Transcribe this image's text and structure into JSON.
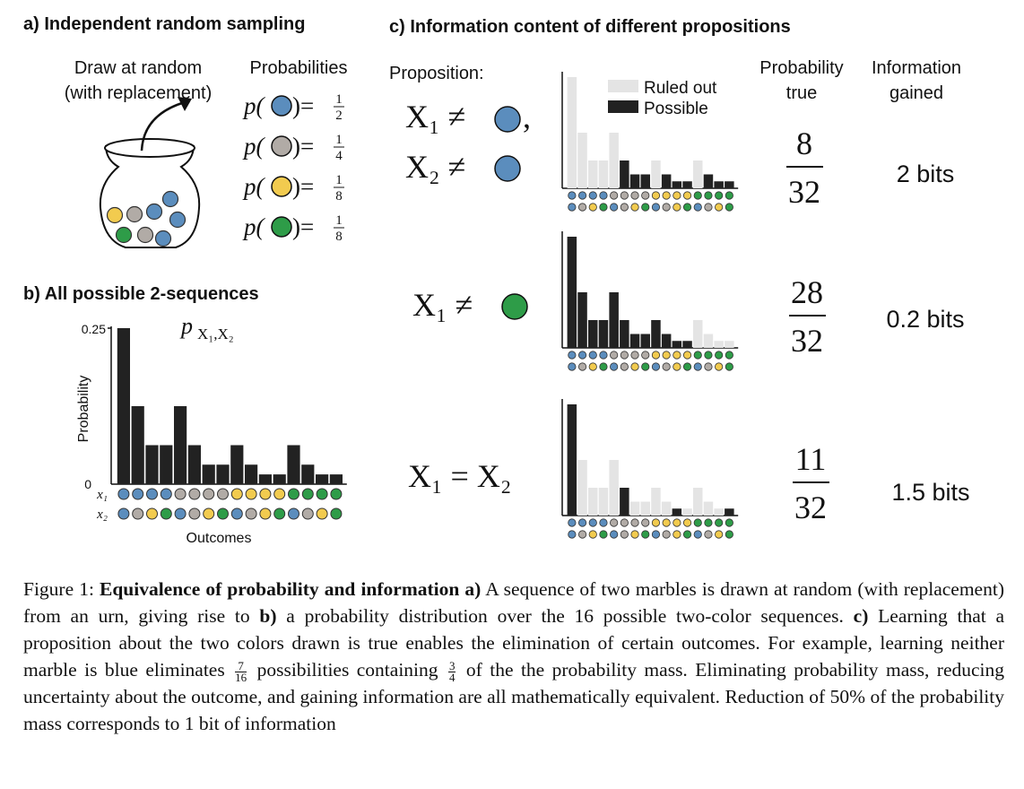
{
  "colors": {
    "blue": "#5b8dbd",
    "gray": "#b1aba6",
    "yellow": "#f2cb4f",
    "green": "#2e9c48",
    "possible": "#222222",
    "ruled_out": "#e4e4e4"
  },
  "panel_a": {
    "title": "a) Independent random sampling",
    "draw_label_1": "Draw at random",
    "draw_label_2": "(with replacement)",
    "prob_header": "Probabilities",
    "probabilities": [
      {
        "color": "blue",
        "num": "1",
        "den": "2"
      },
      {
        "color": "gray",
        "num": "1",
        "den": "4"
      },
      {
        "color": "yellow",
        "num": "1",
        "den": "8"
      },
      {
        "color": "green",
        "num": "1",
        "den": "8"
      }
    ]
  },
  "panel_b": {
    "title": "b) All possible 2-sequences",
    "p_label": "p",
    "p_sub": "X₁,X₂",
    "ylabel": "Probability",
    "xlabel": "Outcomes",
    "ytick_top": "0.25",
    "ytick_zero": "0",
    "x1_label": "x₁",
    "x2_label": "x₂"
  },
  "panel_c": {
    "title": "c) Information content of different propositions",
    "proposition_header": "Proposition:",
    "prob_true_header_1": "Probability",
    "prob_true_header_2": "true",
    "info_header_1": "Information",
    "info_header_2": "gained",
    "legend_ruled_out": "Ruled out",
    "legend_possible": "Possible",
    "rows": [
      {
        "prop_line_1": "X₁ ≠",
        "prop_line_1_suffix": ",",
        "prop_line_2": "X₂ ≠",
        "prop_color": "blue",
        "prob_num": "8",
        "prob_den": "32",
        "info": "2 bits",
        "possible": [
          false,
          false,
          false,
          false,
          false,
          true,
          true,
          true,
          false,
          true,
          true,
          true,
          false,
          true,
          true,
          true
        ]
      },
      {
        "prop_line_1": "X₁ ≠",
        "prop_color": "green",
        "prob_num": "28",
        "prob_den": "32",
        "info": "0.2 bits",
        "possible": [
          true,
          true,
          true,
          true,
          true,
          true,
          true,
          true,
          true,
          true,
          true,
          true,
          false,
          false,
          false,
          false
        ]
      },
      {
        "prop_line_1": "X₁ = X₂",
        "prop_color": "",
        "prob_num": "11",
        "prob_den": "32",
        "info": "1.5 bits",
        "possible": [
          true,
          false,
          false,
          false,
          false,
          true,
          false,
          false,
          false,
          false,
          true,
          false,
          false,
          false,
          false,
          true
        ]
      }
    ]
  },
  "chart_data": {
    "type": "bar",
    "ylabel": "Probability",
    "xlabel": "Outcomes",
    "ylim": [
      0,
      0.25
    ],
    "x1_colors": [
      "blue",
      "blue",
      "blue",
      "blue",
      "gray",
      "gray",
      "gray",
      "gray",
      "yellow",
      "yellow",
      "yellow",
      "yellow",
      "green",
      "green",
      "green",
      "green"
    ],
    "x2_colors": [
      "blue",
      "gray",
      "yellow",
      "green",
      "blue",
      "gray",
      "yellow",
      "green",
      "blue",
      "gray",
      "yellow",
      "green",
      "blue",
      "gray",
      "yellow",
      "green"
    ],
    "values": [
      0.25,
      0.125,
      0.0625,
      0.0625,
      0.125,
      0.0625,
      0.03125,
      0.03125,
      0.0625,
      0.03125,
      0.015625,
      0.015625,
      0.0625,
      0.03125,
      0.015625,
      0.015625
    ]
  },
  "caption": {
    "figure_label": "Figure 1: ",
    "bold_title": "Equivalence of probability and information",
    "a_label": "a)",
    "part_1": "A sequence of two marbles is drawn at random (with replacement) from an urn, giving rise to",
    "b_label": "b)",
    "part_2": "a probability distribution over the 16 possible two-color sequences.",
    "c_label": "c)",
    "part_3": "Learning that a proposition about the two colors drawn is true enables the elimination of certain outcomes. For example, learning neither marble is blue eliminates",
    "frac1_num": "7",
    "frac1_den": "16",
    "part_4": "possibilities containing",
    "frac2_num": "3",
    "frac2_den": "4",
    "part_5": "of the the probability mass. Eliminating probability mass, reducing uncertainty about the outcome, and gaining information are all mathematically equivalent. Reduction of 50% of the probability mass corresponds to 1 bit of information"
  }
}
